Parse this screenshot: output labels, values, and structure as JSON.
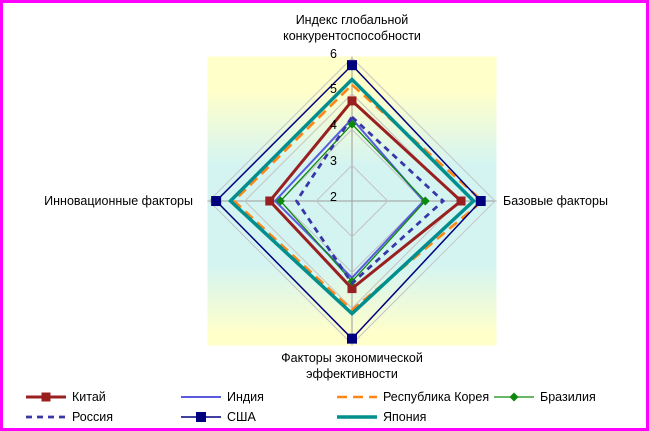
{
  "chart_data": {
    "type": "radar",
    "axes": [
      "Индекс глобальной конкурентоспособности",
      "Базовые факторы",
      "Факторы экономической эффективности",
      "Инновационные факторы"
    ],
    "scale": {
      "min": 2,
      "max": 6,
      "ticks": [
        2,
        3,
        4,
        5,
        6
      ]
    },
    "series": [
      {
        "id": "china",
        "name": "Китай",
        "values": [
          4.8,
          5.05,
          4.45,
          4.3
        ],
        "color": "#9a2020",
        "width": 3,
        "dash": "",
        "marker": "square",
        "marker_size": 9
      },
      {
        "id": "india",
        "name": "Индия",
        "values": [
          4.3,
          4.0,
          4.15,
          4.15
        ],
        "color": "#5a5ae0",
        "width": 2,
        "dash": "",
        "marker": "none",
        "marker_size": 0
      },
      {
        "id": "korea",
        "name": "Республика Корея",
        "values": [
          5.25,
          5.65,
          5.05,
          5.3
        ],
        "color": "#ff8517",
        "width": 2.6,
        "dash": "10 6",
        "marker": "none",
        "marker_size": 0
      },
      {
        "id": "brazil",
        "name": "Бразилия",
        "values": [
          4.15,
          4.05,
          4.25,
          4.0
        ],
        "color": "#0d8a0d",
        "width": 1.3,
        "dash": "",
        "marker": "diamond",
        "marker_size": 9
      },
      {
        "id": "russia",
        "name": "Россия",
        "values": [
          4.35,
          4.55,
          4.3,
          3.55
        ],
        "color": "#3737a8",
        "width": 2.8,
        "dash": "6 5",
        "marker": "none",
        "marker_size": 0
      },
      {
        "id": "usa",
        "name": "США",
        "values": [
          5.8,
          5.6,
          5.85,
          5.8
        ],
        "color": "#00007f",
        "width": 1.5,
        "dash": "",
        "marker": "square",
        "marker_size": 10
      },
      {
        "id": "japan",
        "name": "Япония",
        "values": [
          5.4,
          5.4,
          5.15,
          5.4
        ],
        "color": "#008f8f",
        "width": 3.5,
        "dash": "",
        "marker": "none",
        "marker_size": 0
      }
    ],
    "legend_position": "bottom",
    "gridlines": true
  },
  "colors": {
    "frame_border": "#ff00ff",
    "grid": "#c4c4c4",
    "spoke": "#9c9c9c",
    "plot_bg_outer": "#ffffca",
    "plot_bg_inner": "#d4f4f2"
  }
}
